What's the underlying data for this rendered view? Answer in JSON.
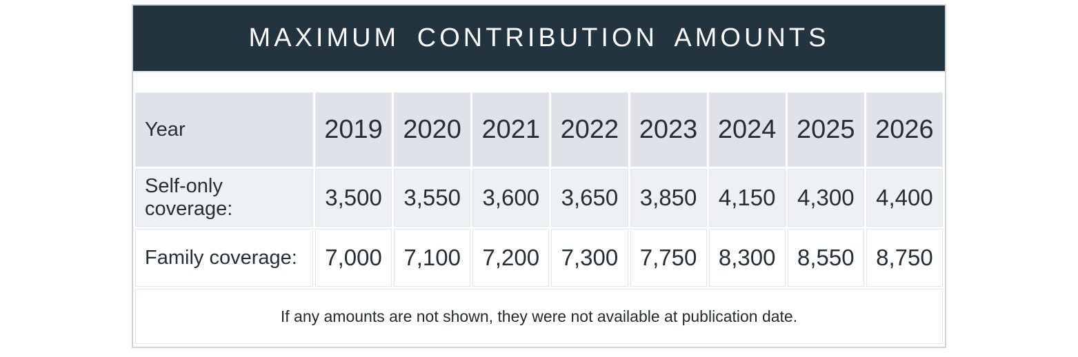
{
  "title": "MAXIMUM CONTRIBUTION AMOUNTS",
  "table": {
    "header": {
      "label": "Year",
      "years": [
        "2019",
        "2020",
        "2021",
        "2022",
        "2023",
        "2024",
        "2025",
        "2026"
      ]
    },
    "rows": [
      {
        "label": "Self-only coverage:",
        "values": [
          "3,500",
          "3,550",
          "3,600",
          "3,650",
          "3,850",
          "4,150",
          "4,300",
          "4,400"
        ]
      },
      {
        "label": "Family coverage:",
        "values": [
          "7,000",
          "7,100",
          "7,200",
          "7,300",
          "7,750",
          "8,300",
          "8,550",
          "8,750"
        ]
      }
    ],
    "footnote": "If any amounts are not shown, they were not available at publication date."
  },
  "chart_data": {
    "type": "table",
    "title": "MAXIMUM CONTRIBUTION AMOUNTS",
    "columns": [
      "Year",
      "2019",
      "2020",
      "2021",
      "2022",
      "2023",
      "2024",
      "2025",
      "2026"
    ],
    "rows": [
      [
        "Self-only coverage:",
        3500,
        3550,
        3600,
        3650,
        3850,
        4150,
        4300,
        4400
      ],
      [
        "Family coverage:",
        7000,
        7100,
        7200,
        7300,
        7750,
        8300,
        8550,
        8750
      ]
    ],
    "footnote": "If any amounts are not shown, they were not available at publication date."
  },
  "colors": {
    "title_bar_bg": "#223440",
    "title_text": "#ffffff",
    "header_row_bg": "#dfe3e9",
    "alt_row_bg": "#eef1f4",
    "white_row_bg": "#ffffff",
    "outer_border": "#ccd3d9",
    "cell_border": "#e4e8ed",
    "body_text": "#242e36"
  }
}
